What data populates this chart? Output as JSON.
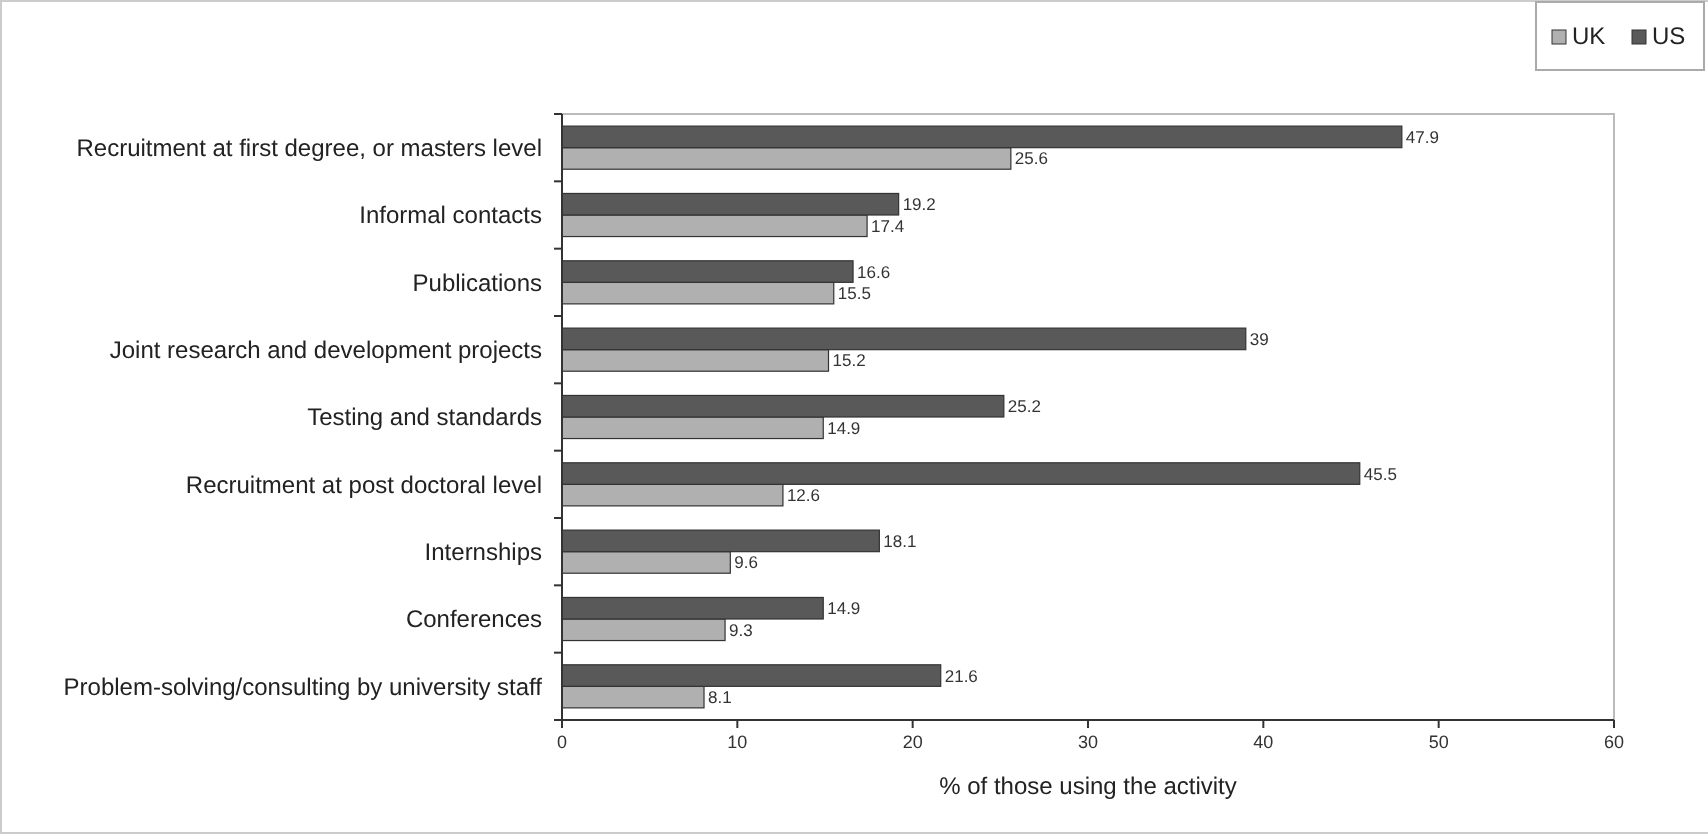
{
  "chart_data": {
    "type": "bar",
    "orientation": "horizontal",
    "xlabel": "% of those using the activity",
    "categories": [
      "Recruitment at first degree, or masters level",
      "Informal contacts",
      "Publications",
      "Joint research and development projects",
      "Testing and standards",
      "Recruitment at post doctoral level",
      "Internships",
      "Conferences",
      "Problem-solving/consulting by university staff"
    ],
    "series": [
      {
        "name": "UK",
        "color": "#b0b0b0",
        "values": [
          25.6,
          17.4,
          15.5,
          15.2,
          14.9,
          12.6,
          9.6,
          9.3,
          8.1
        ]
      },
      {
        "name": "US",
        "color": "#595959",
        "values": [
          47.9,
          19.2,
          16.6,
          39,
          25.2,
          45.5,
          18.1,
          14.9,
          21.6
        ]
      }
    ],
    "xlim": [
      0,
      60
    ],
    "xticks": [
      0,
      10,
      20,
      30,
      40,
      50,
      60
    ],
    "data_labels": true,
    "legend": "top right",
    "grid": false
  }
}
